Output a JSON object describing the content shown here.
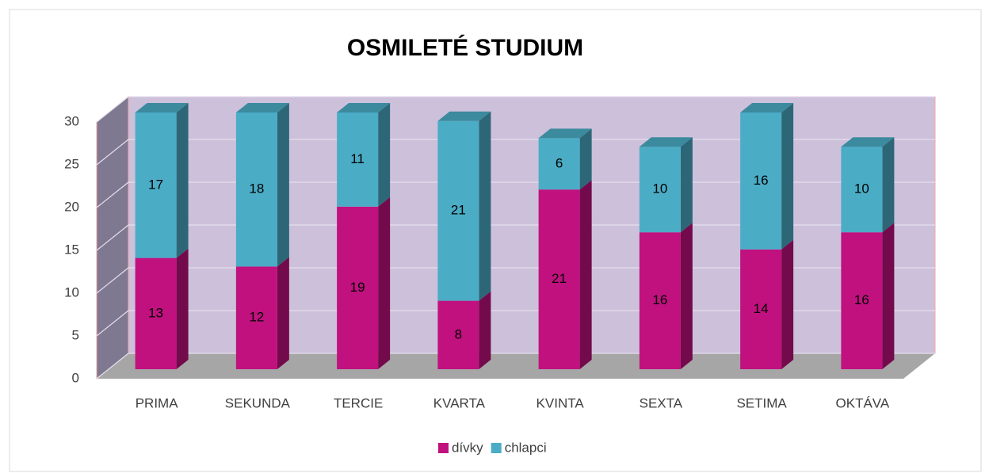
{
  "chart_data": {
    "type": "bar3d_stacked",
    "title": "OSMILETÉ STUDIUM",
    "categories": [
      "PRIMA",
      "SEKUNDA",
      "TERCIE",
      "KVARTA",
      "KVINTA",
      "SEXTA",
      "SETIMA",
      "OKTÁVA"
    ],
    "series": [
      {
        "name": "dívky",
        "color": "#c0117f",
        "values": [
          13,
          12,
          19,
          8,
          21,
          16,
          14,
          16
        ]
      },
      {
        "name": "chlapci",
        "color": "#4bacc6",
        "values": [
          17,
          18,
          11,
          21,
          6,
          10,
          16,
          10
        ]
      }
    ],
    "ylim": [
      0,
      30
    ],
    "yticks": [
      0,
      5,
      10,
      15,
      20,
      25,
      30
    ],
    "grid": true,
    "legend": "bottom"
  }
}
